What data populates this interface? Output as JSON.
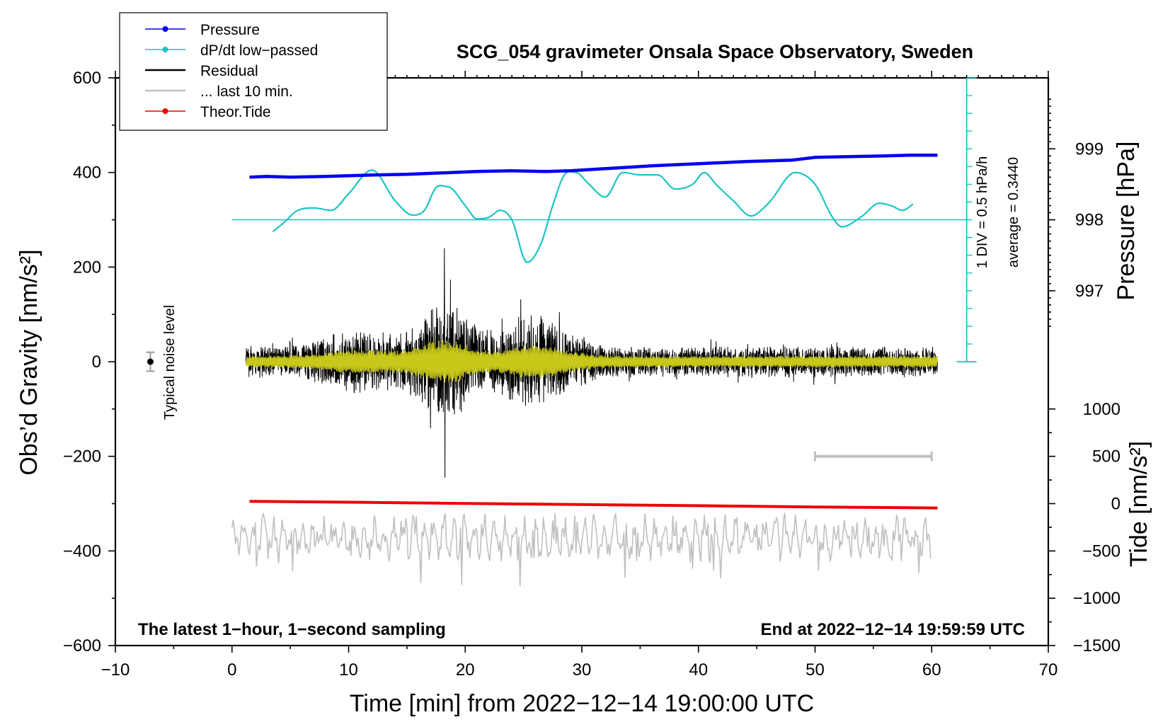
{
  "chart_data": {
    "type": "line",
    "title": "SCG_054 gravimeter Onsala Space Observatory, Sweden",
    "xlabel": "Time [min] from 2022−12−14 19:00:00 UTC",
    "ylabel_left": "Obs’d Gravity [nm/s²]",
    "ylabel_right_pressure": "Pressure [hPa]",
    "ylabel_right_tide": "Tide [nm/s²]",
    "xlim": [
      -10,
      70
    ],
    "ylim": [
      -600,
      600
    ],
    "x_ticks": [
      -10,
      0,
      10,
      20,
      30,
      40,
      50,
      60,
      70
    ],
    "x_tick_labels": [
      "−10",
      "0",
      "10",
      "20",
      "30",
      "40",
      "50",
      "60",
      "70"
    ],
    "y_ticks": [
      -600,
      -400,
      -200,
      0,
      200,
      400,
      600
    ],
    "y_tick_labels": [
      "−600",
      "−400",
      "−200",
      "0",
      "200",
      "400",
      "600"
    ],
    "pressure_axis": {
      "ticks": [
        997,
        998,
        999
      ],
      "tick_labels": [
        "997",
        "998",
        "999"
      ],
      "gravity_at_998": 300,
      "gravity_per_hpa": 150
    },
    "tide_axis": {
      "ticks": [
        -1500,
        -1000,
        -500,
        0,
        500,
        1000
      ],
      "tick_labels": [
        "−1500",
        "−1000",
        "−500",
        "0",
        "500",
        "1000"
      ],
      "gravity_at_zero": -300,
      "gravity_per_unit": 0.2
    },
    "dpdt_axis": {
      "label": "1 DIV = 0.5 hPa/h",
      "average_label": "average = 0.3440",
      "x": 63,
      "y_range": [
        0,
        600
      ],
      "divisions": 16
    },
    "series": [
      {
        "name": "Pressure",
        "color": "#0000ee",
        "unit": "hPa",
        "x": [
          1.5,
          3,
          5,
          8,
          10,
          12,
          15,
          18,
          21,
          24,
          27,
          29,
          32,
          36,
          40,
          44,
          48,
          50,
          53,
          56,
          58,
          60.5
        ],
        "values": [
          998.6,
          998.61,
          998.6,
          998.61,
          998.62,
          998.63,
          998.64,
          998.66,
          998.68,
          998.69,
          998.68,
          998.69,
          998.72,
          998.76,
          998.79,
          998.82,
          998.84,
          998.88,
          998.89,
          998.9,
          998.91,
          998.91
        ]
      },
      {
        "name": "dP/dt low−passed",
        "color": "#1cc4c4",
        "unit": "nm/s² equiv.",
        "x": [
          3.5,
          4.5,
          5.5,
          7,
          8.5,
          10,
          12,
          14,
          15.5,
          16.5,
          17.5,
          18.5,
          20,
          21,
          22,
          23,
          24,
          25.3,
          26.5,
          27.5,
          28.5,
          29.5,
          30.5,
          32,
          33.5,
          35,
          36.5,
          38,
          39.5,
          40.5,
          41.5,
          43,
          44.5,
          46,
          48.3,
          50,
          51.5,
          52.3,
          54,
          55.5,
          56.5,
          57.5,
          58.5
        ],
        "values": [
          275,
          295,
          318,
          325,
          320,
          355,
          405,
          340,
          310,
          320,
          368,
          370,
          330,
          302,
          305,
          320,
          300,
          210,
          250,
          330,
          395,
          400,
          378,
          348,
          400,
          395,
          395,
          365,
          375,
          400,
          375,
          340,
          308,
          335,
          400,
          375,
          305,
          285,
          307,
          335,
          330,
          320,
          335
        ]
      },
      {
        "name": "Residual",
        "color": "#000000",
        "note": "1-second sampling, approx. 1−hour record (drawn as dense noise trace)",
        "x_range": [
          1.2,
          60.5
        ],
        "peak_max": 240,
        "peak_min": -245,
        "peak_at": 18.2
      },
      {
        "name": "... last 10 min.",
        "color": "#c0c0c0",
        "note": "rendered below the residual near −370 nm/s²",
        "x_range": [
          0,
          60
        ]
      },
      {
        "name": "Theor.Tide",
        "color": "#ee0000",
        "unit": "nm/s²",
        "x": [
          1.5,
          10,
          20,
          30,
          40,
          50,
          60.5
        ],
        "values": [
          25,
          15,
          2,
          -10,
          -22,
          -35,
          -46
        ]
      }
    ],
    "noise_level": {
      "label": "Typical noise level",
      "x": -7,
      "y": 0,
      "err": 20
    },
    "scale_bar": {
      "x_start": 50,
      "x_end": 60,
      "y": -200
    },
    "annotations": {
      "bottom_left": "The latest 1−hour, 1−second sampling",
      "bottom_right": "End at 2022−12−14 19:59:59 UTC"
    },
    "legend": [
      {
        "label": "Pressure",
        "color": "#0000ee",
        "marker": true
      },
      {
        "label": "dP/dt low−passed",
        "color": "#1cc4c4",
        "marker": true
      },
      {
        "label": "Residual",
        "color": "#000000",
        "marker": false
      },
      {
        "label": "... last 10 min.",
        "color": "#c0c0c0",
        "marker": false
      },
      {
        "label": "Theor.Tide",
        "color": "#ee0000",
        "marker": true
      }
    ]
  }
}
